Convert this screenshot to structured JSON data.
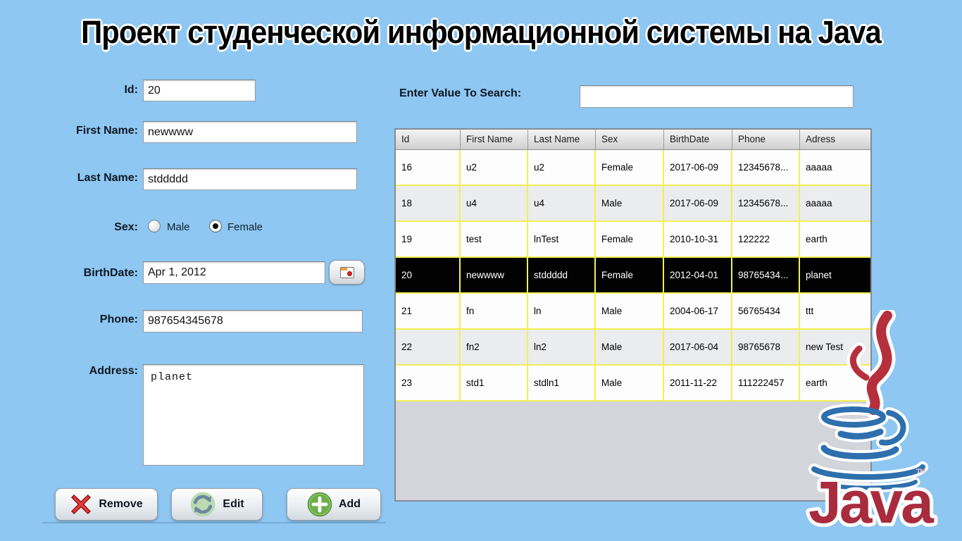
{
  "title": "Проект студенческой информационной системы на Java",
  "form": {
    "id": {
      "label": "Id:",
      "value": "20"
    },
    "first_name": {
      "label": "First Name:",
      "value": "newwww"
    },
    "last_name": {
      "label": "Last Name:",
      "value": "stddddd"
    },
    "sex": {
      "label": "Sex:",
      "options": [
        {
          "label": "Male",
          "selected": false
        },
        {
          "label": "Female",
          "selected": true
        }
      ]
    },
    "birthdate": {
      "label": "BirthDate:",
      "value": "Apr 1, 2012"
    },
    "phone": {
      "label": "Phone:",
      "value": "987654345678"
    },
    "address": {
      "label": "Address:",
      "value": "planet"
    },
    "buttons": {
      "remove": "Remove",
      "edit": "Edit",
      "add": "Add"
    }
  },
  "search": {
    "label": "Enter Value To Search:",
    "value": ""
  },
  "table": {
    "columns": [
      "Id",
      "First Name",
      "Last Name",
      "Sex",
      "BirthDate",
      "Phone",
      "Adress"
    ],
    "selected_id": "20",
    "rows": [
      [
        "16",
        "u2",
        "u2",
        "Female",
        "2017-06-09",
        "12345678...",
        "aaaaa"
      ],
      [
        "18",
        "u4",
        "u4",
        "Male",
        "2017-06-09",
        "12345678...",
        "aaaaa"
      ],
      [
        "19",
        "test",
        "lnTest",
        "Female",
        "2010-10-31",
        "122222",
        "earth"
      ],
      [
        "20",
        "newwww",
        "stddddd",
        "Female",
        "2012-04-01",
        "98765434...",
        "planet"
      ],
      [
        "21",
        "fn",
        "ln",
        "Male",
        "2004-06-17",
        "56765434",
        "ttt"
      ],
      [
        "22",
        "fn2",
        "ln2",
        "Male",
        "2017-06-04",
        "98765678",
        "new Test"
      ],
      [
        "23",
        "std1",
        "stdln1",
        "Male",
        "2011-11-22",
        "111222457",
        "earth"
      ]
    ]
  },
  "logo": {
    "text": "Java",
    "tm": "™"
  },
  "icons": {
    "remove_icon": "red-x",
    "edit_icon": "refresh-arrows",
    "add_icon": "green-plus",
    "calendar_icon": "calendar-window"
  },
  "colors": {
    "background": "#8ec7f1",
    "grid_line": "#f2ef53",
    "selected_row_bg": "#020202",
    "selected_row_text": "#ffffff",
    "alt_row": "#ebecee",
    "table_filler": "#d3d5da",
    "java_blue": "#2e6fad",
    "java_red": "#b5303c",
    "java_text_red": "#a92c3e"
  }
}
